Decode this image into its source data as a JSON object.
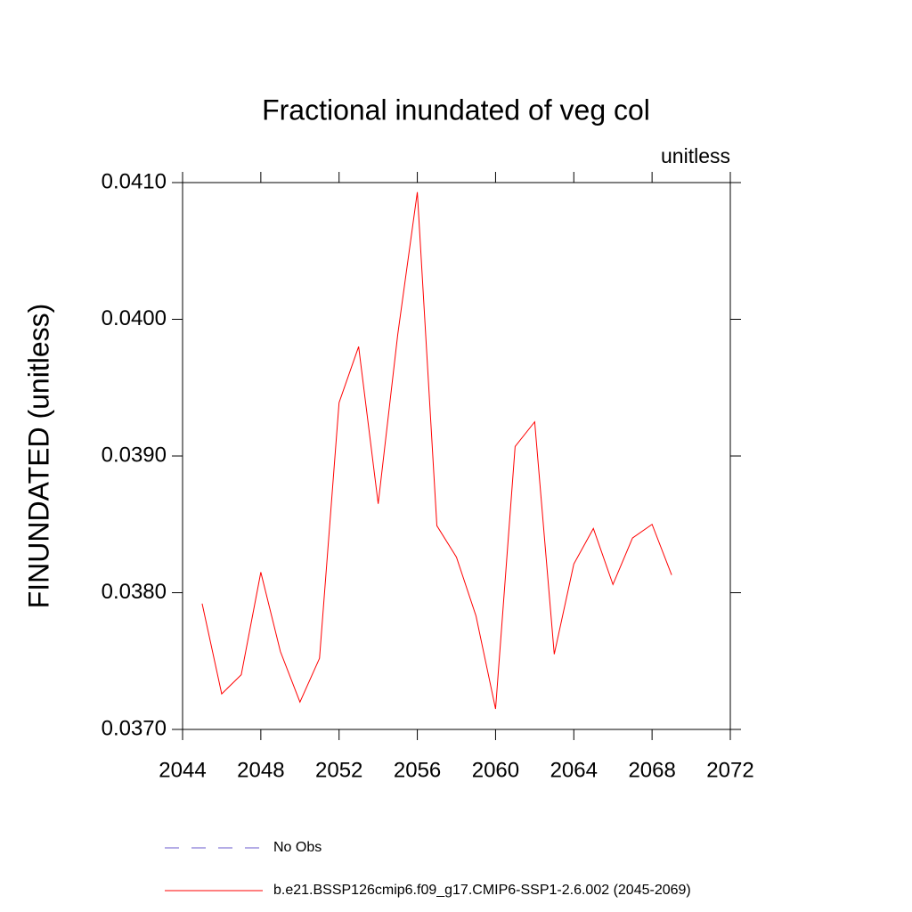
{
  "chart_data": {
    "type": "line",
    "title": "Fractional inundated of veg col",
    "subtitle": "unitless",
    "y_label": "FINUNDATED  (unitless)",
    "x": [
      2045,
      2046,
      2047,
      2048,
      2049,
      2050,
      2051,
      2052,
      2053,
      2054,
      2055,
      2056,
      2057,
      2058,
      2059,
      2060,
      2061,
      2062,
      2063,
      2064,
      2065,
      2066,
      2067,
      2068,
      2069
    ],
    "series": [
      {
        "name": "b.e21.BSSP126cmip6.f09_g17.CMIP6-SSP1-2.6.002 (2045-2069)",
        "color": "#ff0000",
        "values": [
          0.03792,
          0.03726,
          0.0374,
          0.03815,
          0.03757,
          0.0372,
          0.03752,
          0.03939,
          0.0398,
          0.03865,
          0.03989,
          0.04093,
          0.03849,
          0.03826,
          0.03783,
          0.03715,
          0.03907,
          0.03925,
          0.03755,
          0.03821,
          0.03847,
          0.03806,
          0.0384,
          0.0385,
          0.03813
        ]
      }
    ],
    "legend_extra": [
      {
        "name": "No Obs",
        "color": "#6a5acd",
        "dashed": true
      }
    ],
    "xlim": [
      2044,
      2072
    ],
    "xticks": [
      2044,
      2048,
      2052,
      2056,
      2060,
      2064,
      2068,
      2072
    ],
    "ylim": [
      0.037,
      0.041
    ],
    "yticks": [
      {
        "value": 0.037,
        "label": "0.0370"
      },
      {
        "value": 0.038,
        "label": "0.0380"
      },
      {
        "value": 0.039,
        "label": "0.0390"
      },
      {
        "value": 0.04,
        "label": "0.0400"
      },
      {
        "value": 0.041,
        "label": "0.0410"
      }
    ]
  }
}
